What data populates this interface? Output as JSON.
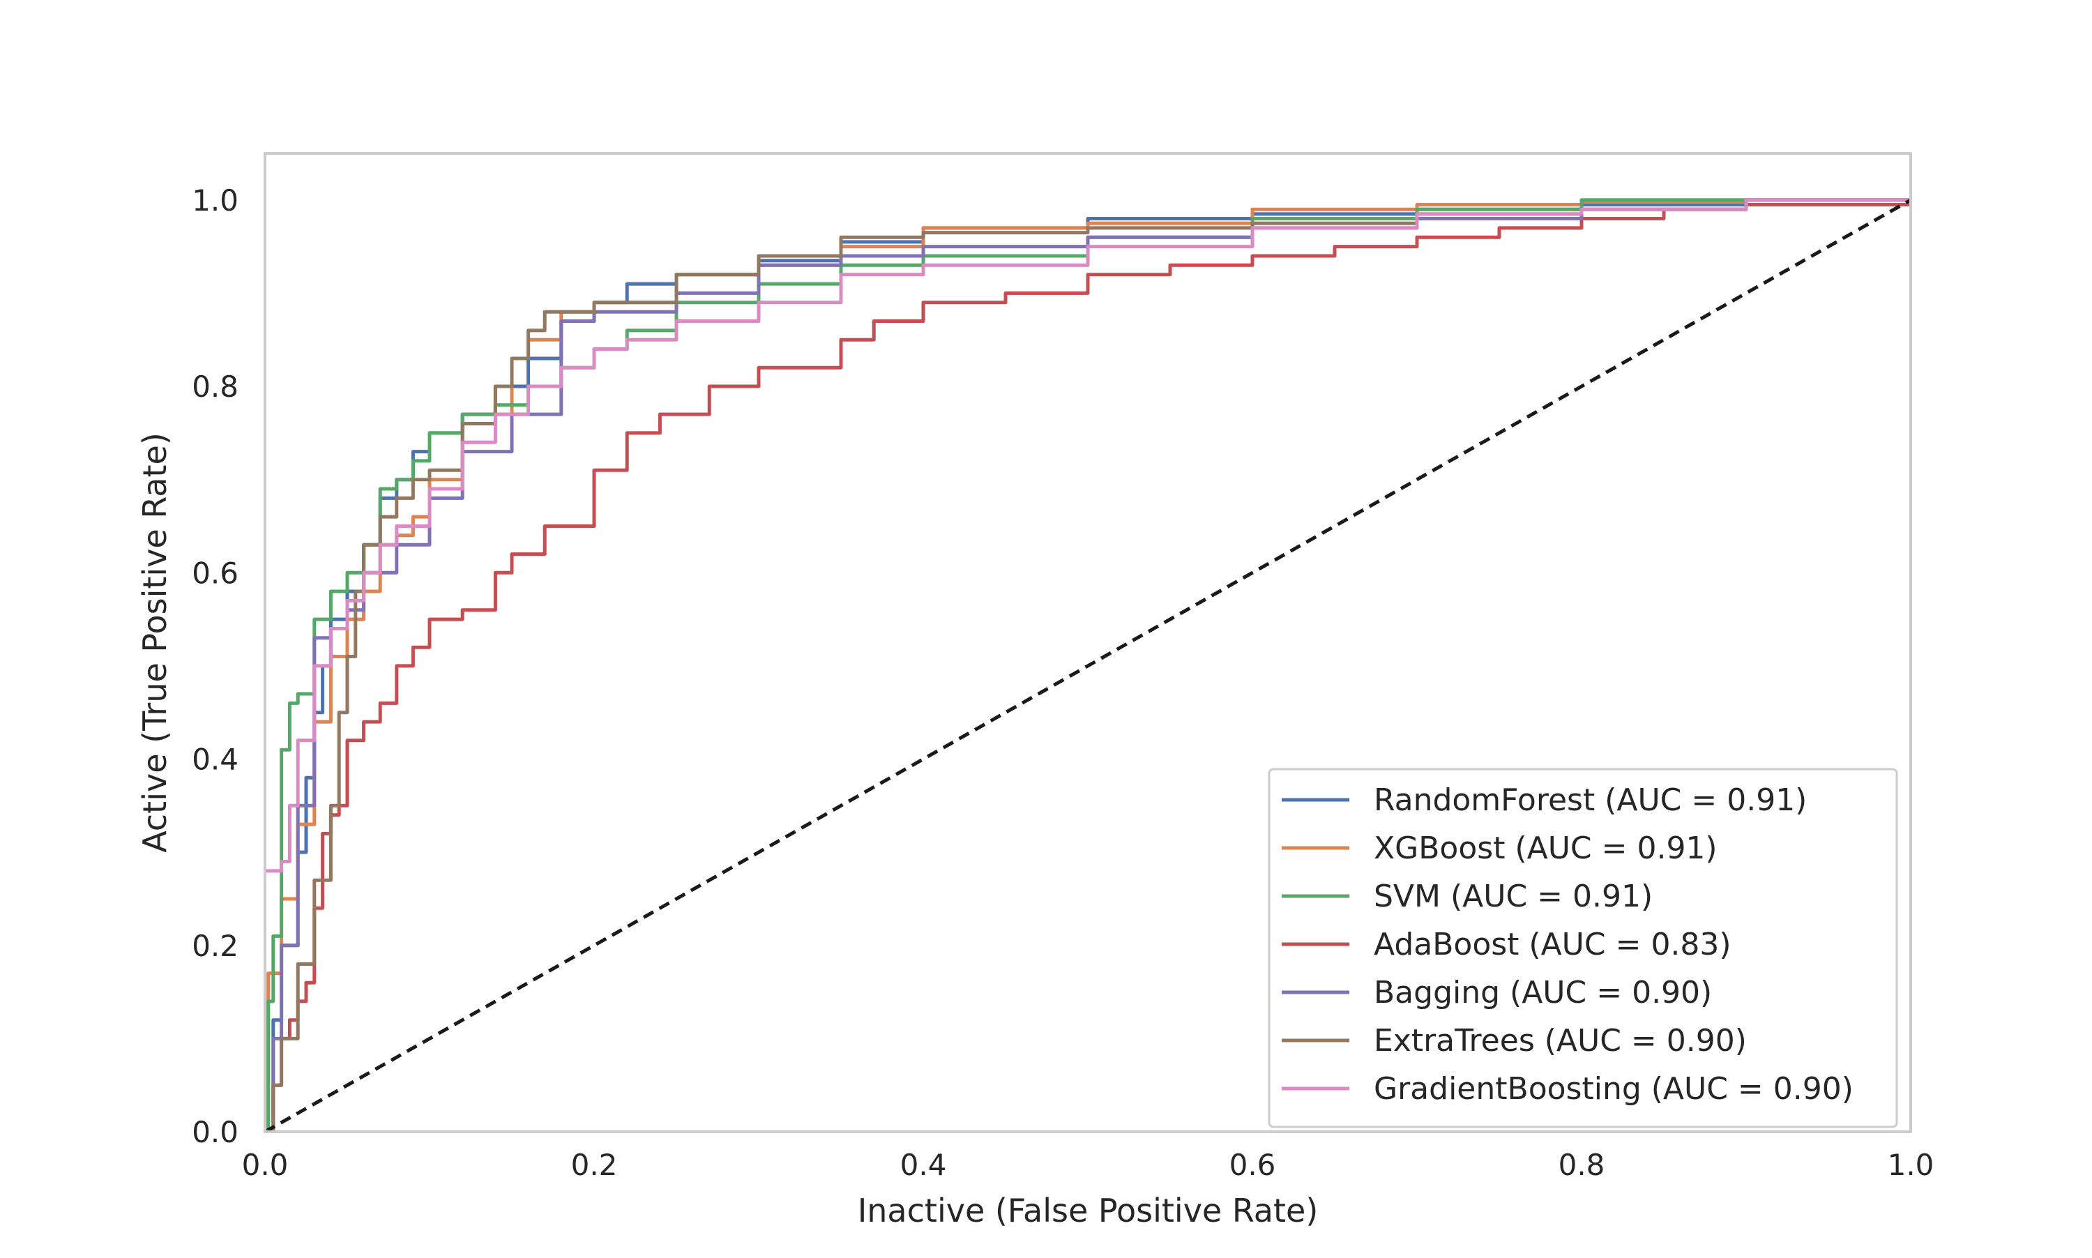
{
  "chart_data": {
    "type": "line",
    "title": "",
    "xlabel": "Inactive (False Positive Rate)",
    "ylabel": "Active (True Positive Rate)",
    "xlim": [
      0.0,
      1.0
    ],
    "ylim": [
      0.0,
      1.05
    ],
    "xticks": [
      0.0,
      0.2,
      0.4,
      0.6,
      0.8,
      1.0
    ],
    "yticks": [
      0.0,
      0.2,
      0.4,
      0.6,
      0.8,
      1.0
    ],
    "xtick_labels": [
      "0.0",
      "0.2",
      "0.4",
      "0.6",
      "0.8",
      "1.0"
    ],
    "ytick_labels": [
      "0.0",
      "0.2",
      "0.4",
      "0.6",
      "0.8",
      "1.0"
    ],
    "grid": false,
    "legend_position": "lower-right",
    "diagonal": {
      "x": [
        0.0,
        1.0
      ],
      "y": [
        0.0,
        1.0
      ],
      "style": "dashed",
      "color": "#1a1a1a"
    },
    "series": [
      {
        "name": "RandomForest (AUC = 0.91)",
        "color": "#4c72b0",
        "x": [
          0.0,
          0.005,
          0.01,
          0.02,
          0.025,
          0.03,
          0.035,
          0.04,
          0.05,
          0.06,
          0.07,
          0.08,
          0.09,
          0.1,
          0.12,
          0.14,
          0.16,
          0.18,
          0.2,
          0.22,
          0.25,
          0.3,
          0.35,
          0.4,
          0.5,
          0.6,
          0.7,
          0.8,
          0.9,
          1.0
        ],
        "y": [
          0.0,
          0.12,
          0.2,
          0.3,
          0.38,
          0.45,
          0.5,
          0.55,
          0.58,
          0.63,
          0.68,
          0.7,
          0.73,
          0.75,
          0.77,
          0.8,
          0.83,
          0.87,
          0.89,
          0.91,
          0.92,
          0.935,
          0.955,
          0.97,
          0.98,
          0.985,
          0.99,
          0.995,
          1.0,
          1.0
        ]
      },
      {
        "name": "XGBoost (AUC = 0.91)",
        "color": "#dd8452",
        "x": [
          0.0,
          0.002,
          0.01,
          0.02,
          0.03,
          0.04,
          0.05,
          0.06,
          0.07,
          0.08,
          0.09,
          0.1,
          0.12,
          0.14,
          0.15,
          0.16,
          0.18,
          0.2,
          0.25,
          0.3,
          0.35,
          0.4,
          0.5,
          0.6,
          0.7,
          0.8,
          0.9,
          1.0
        ],
        "y": [
          0.0,
          0.17,
          0.25,
          0.33,
          0.44,
          0.51,
          0.55,
          0.58,
          0.63,
          0.64,
          0.66,
          0.7,
          0.76,
          0.77,
          0.83,
          0.85,
          0.88,
          0.89,
          0.92,
          0.93,
          0.95,
          0.97,
          0.975,
          0.99,
          0.995,
          0.998,
          1.0,
          1.0
        ]
      },
      {
        "name": "SVM (AUC = 0.91)",
        "color": "#55a868",
        "x": [
          0.0,
          0.002,
          0.005,
          0.01,
          0.015,
          0.02,
          0.03,
          0.04,
          0.05,
          0.06,
          0.07,
          0.08,
          0.09,
          0.1,
          0.12,
          0.14,
          0.16,
          0.18,
          0.2,
          0.22,
          0.25,
          0.3,
          0.35,
          0.4,
          0.5,
          0.6,
          0.7,
          0.8,
          0.9,
          1.0
        ],
        "y": [
          0.0,
          0.14,
          0.21,
          0.41,
          0.46,
          0.47,
          0.55,
          0.58,
          0.6,
          0.63,
          0.69,
          0.7,
          0.72,
          0.75,
          0.77,
          0.78,
          0.8,
          0.82,
          0.84,
          0.86,
          0.89,
          0.91,
          0.93,
          0.94,
          0.96,
          0.98,
          0.99,
          1.0,
          1.0,
          1.0
        ]
      },
      {
        "name": "AdaBoost (AUC = 0.83)",
        "color": "#c44e52",
        "x": [
          0.0,
          0.005,
          0.01,
          0.015,
          0.02,
          0.025,
          0.03,
          0.035,
          0.04,
          0.045,
          0.05,
          0.06,
          0.07,
          0.08,
          0.09,
          0.1,
          0.12,
          0.14,
          0.15,
          0.17,
          0.2,
          0.22,
          0.24,
          0.27,
          0.3,
          0.35,
          0.37,
          0.4,
          0.45,
          0.5,
          0.55,
          0.6,
          0.65,
          0.7,
          0.75,
          0.8,
          0.85,
          0.9,
          1.0
        ],
        "y": [
          0.0,
          0.05,
          0.1,
          0.12,
          0.14,
          0.16,
          0.24,
          0.32,
          0.34,
          0.35,
          0.42,
          0.44,
          0.46,
          0.5,
          0.52,
          0.55,
          0.56,
          0.6,
          0.62,
          0.65,
          0.71,
          0.75,
          0.77,
          0.8,
          0.82,
          0.85,
          0.87,
          0.89,
          0.9,
          0.92,
          0.93,
          0.94,
          0.95,
          0.96,
          0.97,
          0.98,
          0.99,
          0.995,
          1.0
        ]
      },
      {
        "name": "Bagging (AUC = 0.90)",
        "color": "#8172b3",
        "x": [
          0.0,
          0.005,
          0.01,
          0.02,
          0.03,
          0.04,
          0.05,
          0.06,
          0.08,
          0.1,
          0.12,
          0.15,
          0.18,
          0.2,
          0.25,
          0.3,
          0.35,
          0.4,
          0.5,
          0.6,
          0.7,
          0.8,
          0.9,
          1.0
        ],
        "y": [
          0.0,
          0.1,
          0.2,
          0.35,
          0.53,
          0.54,
          0.56,
          0.6,
          0.63,
          0.68,
          0.73,
          0.77,
          0.87,
          0.88,
          0.9,
          0.93,
          0.94,
          0.95,
          0.96,
          0.97,
          0.98,
          0.99,
          1.0,
          1.0
        ]
      },
      {
        "name": "ExtraTrees (AUC = 0.90)",
        "color": "#937860",
        "x": [
          0.0,
          0.005,
          0.01,
          0.02,
          0.03,
          0.04,
          0.045,
          0.05,
          0.055,
          0.06,
          0.07,
          0.08,
          0.09,
          0.1,
          0.12,
          0.14,
          0.15,
          0.16,
          0.17,
          0.2,
          0.25,
          0.3,
          0.35,
          0.4,
          0.5,
          0.6,
          0.7,
          0.8,
          0.9,
          1.0
        ],
        "y": [
          0.0,
          0.05,
          0.1,
          0.18,
          0.27,
          0.35,
          0.45,
          0.51,
          0.58,
          0.63,
          0.66,
          0.68,
          0.7,
          0.71,
          0.76,
          0.8,
          0.83,
          0.86,
          0.88,
          0.89,
          0.92,
          0.94,
          0.96,
          0.965,
          0.97,
          0.975,
          0.985,
          0.99,
          1.0,
          1.0
        ]
      },
      {
        "name": "GradientBoosting (AUC = 0.90)",
        "color": "#da8bc3",
        "x": [
          0.0,
          0.005,
          0.01,
          0.015,
          0.02,
          0.03,
          0.04,
          0.05,
          0.06,
          0.07,
          0.08,
          0.1,
          0.12,
          0.14,
          0.16,
          0.18,
          0.2,
          0.22,
          0.25,
          0.3,
          0.35,
          0.4,
          0.5,
          0.6,
          0.7,
          0.8,
          0.9,
          1.0
        ],
        "y": [
          0.28,
          0.28,
          0.29,
          0.35,
          0.42,
          0.5,
          0.54,
          0.57,
          0.6,
          0.63,
          0.65,
          0.69,
          0.74,
          0.77,
          0.8,
          0.82,
          0.84,
          0.85,
          0.87,
          0.89,
          0.92,
          0.93,
          0.95,
          0.97,
          0.985,
          0.99,
          1.0,
          1.0
        ]
      }
    ]
  }
}
